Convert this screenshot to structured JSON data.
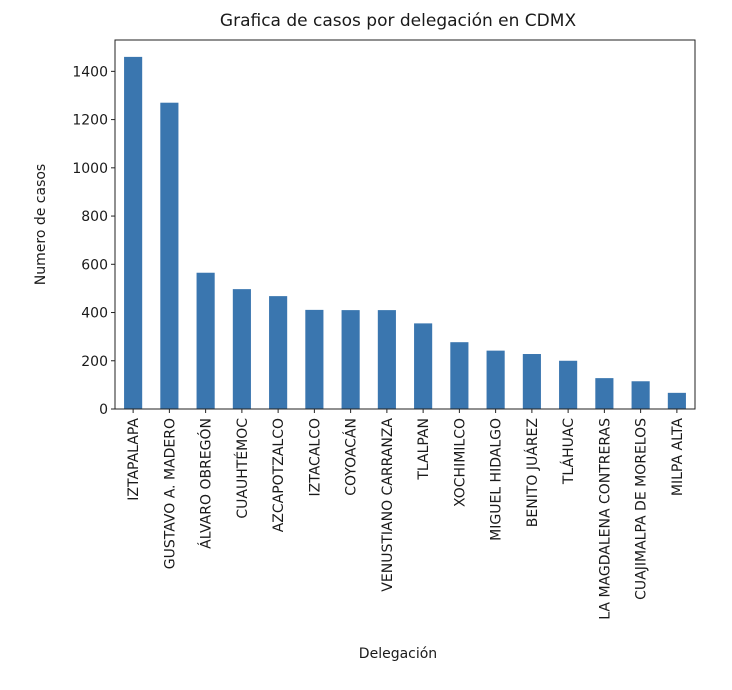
{
  "chart_data": {
    "type": "bar",
    "title": "Grafica de casos por delegación en CDMX",
    "xlabel": "Delegación",
    "ylabel": "Numero de casos",
    "ylim": [
      0,
      1530
    ],
    "yticks": [
      0,
      200,
      400,
      600,
      800,
      1000,
      1200,
      1400
    ],
    "grid": false,
    "legend": "none",
    "bar_color": "#3a76af",
    "categories": [
      "IZTAPALAPA",
      "GUSTAVO A. MADERO",
      "ÁLVARO OBREGÓN",
      "CUAUHTÉMOC",
      "AZCAPOTZALCO",
      "IZTACALCO",
      "COYOACÁN",
      "VENUSTIANO CARRANZA",
      "TLALPAN",
      "XOCHIMILCO",
      "MIGUEL HIDALGO",
      "BENITO JUÁREZ",
      "TLÁHUAC",
      "LA MAGDALENA CONTRERAS",
      "CUAJIMALPA DE MORELOS",
      "MILPA ALTA"
    ],
    "values": [
      1460,
      1270,
      565,
      497,
      468,
      411,
      410,
      410,
      355,
      277,
      242,
      228,
      200,
      128,
      115,
      67
    ]
  }
}
